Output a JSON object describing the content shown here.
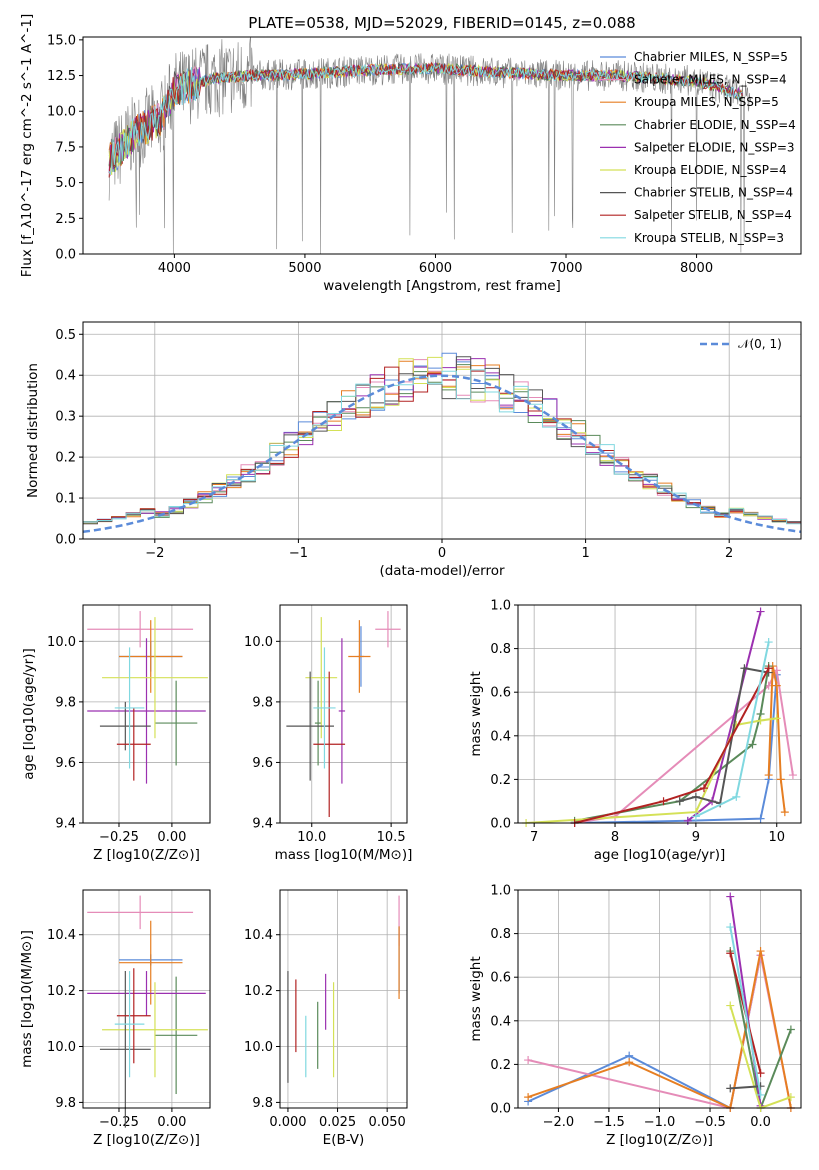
{
  "colors": {
    "Chabrier MILES": "#5b8bd9",
    "Salpeter MILES": "#e58cb8",
    "Kroupa MILES": "#e67e22",
    "Chabrier ELODIE": "#5a8a5a",
    "Salpeter ELODIE": "#9b30b0",
    "Kroupa ELODIE": "#d4e157",
    "Chabrier STELIB": "#555555",
    "Salpeter STELIB": "#b22222",
    "Kroupa STELIB": "#80d8e0"
  },
  "chart_data": [
    {
      "id": "spectrum",
      "type": "line",
      "title": "PLATE=0538, MJD=52029, FIBERID=0145, z=0.088",
      "xlabel": "wavelength [Angstrom, rest frame]",
      "ylabel": "Flux [f_λ10^-17 erg cm^-2 s^-1 A^-1]",
      "xlim": [
        3300,
        8800
      ],
      "ylim": [
        0,
        15.2
      ],
      "xticks": [
        4000,
        5000,
        6000,
        7000,
        8000
      ],
      "yticks": [
        0.0,
        2.5,
        5.0,
        7.5,
        10.0,
        12.5,
        15.0
      ],
      "legend": [
        {
          "label": "Chabrier MILES, N_SSP=5",
          "color": "#5b8bd9"
        },
        {
          "label": "Salpeter MILES, N_SSP=4",
          "color": "#e58cb8"
        },
        {
          "label": "Kroupa MILES, N_SSP=5",
          "color": "#e67e22"
        },
        {
          "label": "Chabrier ELODIE, N_SSP=4",
          "color": "#5a8a5a"
        },
        {
          "label": "Salpeter ELODIE, N_SSP=3",
          "color": "#9b30b0"
        },
        {
          "label": "Kroupa ELODIE, N_SSP=4",
          "color": "#d4e157"
        },
        {
          "label": "Chabrier STELIB, N_SSP=4",
          "color": "#555555"
        },
        {
          "label": "Salpeter STELIB, N_SSP=4",
          "color": "#b22222"
        },
        {
          "label": "Kroupa STELIB, N_SSP=3",
          "color": "#80d8e0"
        }
      ],
      "legend_loc": "right",
      "series_continuum": {
        "x": [
          3500,
          3700,
          3900,
          4000,
          4300,
          4600,
          5000,
          5500,
          6000,
          6500,
          7000,
          7400,
          8000,
          8400
        ],
        "y": [
          6.5,
          8.5,
          9.5,
          11.5,
          12.3,
          12.5,
          12.6,
          12.9,
          13.0,
          12.7,
          12.5,
          12.5,
          12.1,
          11.0
        ]
      }
    },
    {
      "id": "residuals",
      "type": "line",
      "xlabel": "(data-model)/error",
      "ylabel": "Normed distribution",
      "xlim": [
        -2.5,
        2.5
      ],
      "ylim": [
        0,
        0.53
      ],
      "xticks": [
        -2,
        -1,
        0,
        1,
        2
      ],
      "yticks": [
        0.0,
        0.1,
        0.2,
        0.3,
        0.4,
        0.5
      ],
      "legend": [
        {
          "label": "𝒩(0, 1)",
          "color": "#5b8bd9"
        }
      ],
      "gaussian": {
        "mu": 0,
        "sigma": 1
      }
    },
    {
      "id": "age_vs_Z",
      "type": "scatter",
      "xlabel": "Z [log10(Z/Z⊙)]",
      "ylabel": "age  [log10(age/yr)]",
      "xlim": [
        -0.42,
        0.18
      ],
      "ylim": [
        9.4,
        10.12
      ],
      "xticks": [
        -0.25,
        0.0
      ],
      "yticks": [
        9.4,
        9.6,
        9.8,
        10.0
      ],
      "points": [
        {
          "model": "Chabrier MILES",
          "x": -0.1,
          "xerr": 0.15,
          "y": 9.95,
          "yerr": 0.05
        },
        {
          "model": "Salpeter MILES",
          "x": -0.15,
          "xerr": 0.25,
          "y": 10.04,
          "yerr": 0.06
        },
        {
          "model": "Kroupa MILES",
          "x": -0.1,
          "xerr": 0.15,
          "y": 9.95,
          "yerr": 0.12
        },
        {
          "model": "Chabrier ELODIE",
          "x": 0.02,
          "xerr": 0.1,
          "y": 9.73,
          "yerr": 0.14
        },
        {
          "model": "Salpeter ELODIE",
          "x": -0.12,
          "xerr": 0.28,
          "y": 9.77,
          "yerr": 0.24
        },
        {
          "model": "Kroupa ELODIE",
          "x": -0.08,
          "xerr": 0.25,
          "y": 9.88,
          "yerr": 0.2
        },
        {
          "model": "Chabrier STELIB",
          "x": -0.22,
          "xerr": 0.12,
          "y": 9.72,
          "yerr": 0.08
        },
        {
          "model": "Salpeter STELIB",
          "x": -0.18,
          "xerr": 0.08,
          "y": 9.66,
          "yerr": 0.12
        },
        {
          "model": "Kroupa STELIB",
          "x": -0.2,
          "xerr": 0.07,
          "y": 9.78,
          "yerr": 0.2
        }
      ]
    },
    {
      "id": "age_vs_mass",
      "type": "scatter",
      "xlabel": "mass [log10(M/M⊙)]",
      "ylabel": "",
      "xlim": [
        9.8,
        10.6
      ],
      "ylim": [
        9.4,
        10.12
      ],
      "xticks": [
        10.0,
        10.5
      ],
      "yticks": [
        9.4,
        9.6,
        9.8,
        10.0
      ],
      "points": [
        {
          "model": "Chabrier MILES",
          "x": 10.31,
          "xerr": 0.02,
          "y": 9.95,
          "yerr": 0.1
        },
        {
          "model": "Salpeter MILES",
          "x": 10.48,
          "xerr": 0.08,
          "y": 10.04,
          "yerr": 0.06
        },
        {
          "model": "Kroupa MILES",
          "x": 10.3,
          "xerr": 0.07,
          "y": 9.95,
          "yerr": 0.12
        },
        {
          "model": "Chabrier ELODIE",
          "x": 10.04,
          "xerr": 0.02,
          "y": 9.73,
          "yerr": 0.14
        },
        {
          "model": "Salpeter ELODIE",
          "x": 10.19,
          "xerr": 0.02,
          "y": 9.77,
          "yerr": 0.24
        },
        {
          "model": "Kroupa ELODIE",
          "x": 10.06,
          "xerr": 0.1,
          "y": 9.88,
          "yerr": 0.2
        },
        {
          "model": "Chabrier STELIB",
          "x": 9.99,
          "xerr": 0.15,
          "y": 9.72,
          "yerr": 0.18
        },
        {
          "model": "Salpeter STELIB",
          "x": 10.11,
          "xerr": 0.1,
          "y": 9.66,
          "yerr": 0.24
        },
        {
          "model": "Kroupa STELIB",
          "x": 10.08,
          "xerr": 0.07,
          "y": 9.78,
          "yerr": 0.2
        }
      ]
    },
    {
      "id": "mw_vs_age",
      "type": "line",
      "xlabel": "age  [log10(age/yr)]",
      "ylabel": "mass weight",
      "xlim": [
        6.8,
        10.3
      ],
      "ylim": [
        0,
        1.0
      ],
      "xticks": [
        7,
        8,
        9,
        10
      ],
      "yticks": [
        0.0,
        0.2,
        0.4,
        0.6,
        0.8,
        1.0
      ],
      "series": [
        {
          "model": "Chabrier MILES",
          "x": [
            7.5,
            8.9,
            9.8,
            9.9,
            10.0
          ],
          "y": [
            0.0,
            0.01,
            0.02,
            0.2,
            0.68
          ]
        },
        {
          "model": "Salpeter MILES",
          "x": [
            7.5,
            8.0,
            9.9,
            10.0,
            10.2
          ],
          "y": [
            0.0,
            0.03,
            0.63,
            0.7,
            0.22
          ]
        },
        {
          "model": "Kroupa MILES",
          "x": [
            9.9,
            9.95,
            10.0,
            10.05,
            10.1
          ],
          "y": [
            0.22,
            0.72,
            0.63,
            0.2,
            0.05
          ]
        },
        {
          "model": "Chabrier ELODIE",
          "x": [
            7.5,
            8.8,
            9.7,
            9.8,
            9.9
          ],
          "y": [
            0.01,
            0.1,
            0.36,
            0.5,
            0.72
          ]
        },
        {
          "model": "Salpeter ELODIE",
          "x": [
            8.9,
            9.2,
            9.8
          ],
          "y": [
            0.01,
            0.1,
            0.97
          ]
        },
        {
          "model": "Kroupa ELODIE",
          "x": [
            6.9,
            9.0,
            9.5,
            9.8,
            10.0
          ],
          "y": [
            0.0,
            0.05,
            0.45,
            0.47,
            0.48
          ]
        },
        {
          "model": "Chabrier STELIB",
          "x": [
            8.8,
            9.0,
            9.3,
            9.6,
            9.9
          ],
          "y": [
            0.1,
            0.12,
            0.09,
            0.71,
            0.69
          ]
        },
        {
          "model": "Salpeter STELIB",
          "x": [
            7.5,
            8.6,
            9.1,
            9.9
          ],
          "y": [
            0.0,
            0.1,
            0.16,
            0.71
          ]
        },
        {
          "model": "Kroupa STELIB",
          "x": [
            9.0,
            9.5,
            9.9
          ],
          "y": [
            0.03,
            0.12,
            0.83
          ]
        }
      ]
    },
    {
      "id": "mass_vs_Z",
      "type": "scatter",
      "xlabel": "Z [log10(Z/Z⊙)]",
      "ylabel": "mass [log10(M/M⊙)]",
      "xlim": [
        -0.42,
        0.18
      ],
      "ylim": [
        9.78,
        10.56
      ],
      "xticks": [
        -0.25,
        0.0
      ],
      "yticks": [
        9.8,
        10.0,
        10.2,
        10.4
      ],
      "points": [
        {
          "model": "Chabrier MILES",
          "x": -0.1,
          "xerr": 0.15,
          "y": 10.31,
          "yerr": 0.02
        },
        {
          "model": "Salpeter MILES",
          "x": -0.15,
          "xerr": 0.25,
          "y": 10.48,
          "yerr": 0.06
        },
        {
          "model": "Kroupa MILES",
          "x": -0.1,
          "xerr": 0.15,
          "y": 10.3,
          "yerr": 0.15
        },
        {
          "model": "Chabrier ELODIE",
          "x": 0.02,
          "xerr": 0.1,
          "y": 10.04,
          "yerr": 0.21
        },
        {
          "model": "Salpeter ELODIE",
          "x": -0.12,
          "xerr": 0.28,
          "y": 10.19,
          "yerr": 0.08
        },
        {
          "model": "Kroupa ELODIE",
          "x": -0.08,
          "xerr": 0.25,
          "y": 10.06,
          "yerr": 0.17
        },
        {
          "model": "Chabrier STELIB",
          "x": -0.22,
          "xerr": 0.12,
          "y": 9.99,
          "yerr": 0.28
        },
        {
          "model": "Salpeter STELIB",
          "x": -0.18,
          "xerr": 0.08,
          "y": 10.11,
          "yerr": 0.17
        },
        {
          "model": "Kroupa STELIB",
          "x": -0.2,
          "xerr": 0.07,
          "y": 10.08,
          "yerr": 0.19
        }
      ]
    },
    {
      "id": "mass_vs_EBV",
      "type": "scatter",
      "xlabel": "E(B-V)",
      "ylabel": "",
      "xlim": [
        -0.004,
        0.06
      ],
      "ylim": [
        9.78,
        10.56
      ],
      "xticks": [
        0.0,
        0.025,
        0.05
      ],
      "yticks": [
        9.8,
        10.0,
        10.2,
        10.4
      ],
      "points": [
        {
          "model": "Chabrier MILES",
          "x": 0.056,
          "xerr": 0.0,
          "y": 10.31,
          "yerr": 0.12
        },
        {
          "model": "Salpeter MILES",
          "x": 0.056,
          "xerr": 0.0,
          "y": 10.45,
          "yerr": 0.09
        },
        {
          "model": "Kroupa MILES",
          "x": 0.056,
          "xerr": 0.0,
          "y": 10.3,
          "yerr": 0.13
        },
        {
          "model": "Chabrier ELODIE",
          "x": 0.015,
          "xerr": 0.0,
          "y": 10.04,
          "yerr": 0.12
        },
        {
          "model": "Salpeter ELODIE",
          "x": 0.019,
          "xerr": 0.0,
          "y": 10.16,
          "yerr": 0.1
        },
        {
          "model": "Kroupa ELODIE",
          "x": 0.023,
          "xerr": 0.0,
          "y": 10.06,
          "yerr": 0.17
        },
        {
          "model": "Chabrier STELIB",
          "x": 0.0,
          "xerr": 0.0,
          "y": 10.07,
          "yerr": 0.2
        },
        {
          "model": "Salpeter STELIB",
          "x": 0.004,
          "xerr": 0.0,
          "y": 10.11,
          "yerr": 0.13
        },
        {
          "model": "Kroupa STELIB",
          "x": 0.009,
          "xerr": 0.0,
          "y": 10.0,
          "yerr": 0.11
        }
      ]
    },
    {
      "id": "mw_vs_Z",
      "type": "line",
      "xlabel": "Z [log10(Z/Z⊙)]",
      "ylabel": "mass weight",
      "xlim": [
        -2.4,
        0.4
      ],
      "ylim": [
        0,
        1.0
      ],
      "xticks": [
        -2.0,
        -1.5,
        -1.0,
        -0.5,
        0.0
      ],
      "yticks": [
        0.0,
        0.2,
        0.4,
        0.6,
        0.8,
        1.0
      ],
      "series": [
        {
          "model": "Chabrier MILES",
          "x": [
            -2.3,
            -1.3,
            -0.3,
            0.0
          ],
          "y": [
            0.03,
            0.24,
            0.0,
            0.7
          ]
        },
        {
          "model": "Salpeter MILES",
          "x": [
            -2.3,
            -0.3,
            0.0,
            0.3
          ],
          "y": [
            0.22,
            0.0,
            0.7,
            0.0
          ]
        },
        {
          "model": "Kroupa MILES",
          "x": [
            -2.3,
            -1.3,
            -0.3,
            0.0,
            0.3
          ],
          "y": [
            0.05,
            0.21,
            0.0,
            0.72,
            0.0
          ]
        },
        {
          "model": "Chabrier ELODIE",
          "x": [
            -0.3,
            0.0,
            0.3
          ],
          "y": [
            0.72,
            0.0,
            0.36
          ]
        },
        {
          "model": "Salpeter ELODIE",
          "x": [
            -0.3,
            0.0
          ],
          "y": [
            0.97,
            0.01
          ]
        },
        {
          "model": "Kroupa ELODIE",
          "x": [
            -0.3,
            0.0,
            0.3
          ],
          "y": [
            0.47,
            0.0,
            0.05
          ]
        },
        {
          "model": "Chabrier STELIB",
          "x": [
            -0.3,
            0.0
          ],
          "y": [
            0.09,
            0.1
          ]
        },
        {
          "model": "Salpeter STELIB",
          "x": [
            -0.3,
            0.0
          ],
          "y": [
            0.71,
            0.16
          ]
        },
        {
          "model": "Kroupa STELIB",
          "x": [
            -0.3,
            0.0
          ],
          "y": [
            0.83,
            0.06
          ]
        }
      ]
    }
  ]
}
